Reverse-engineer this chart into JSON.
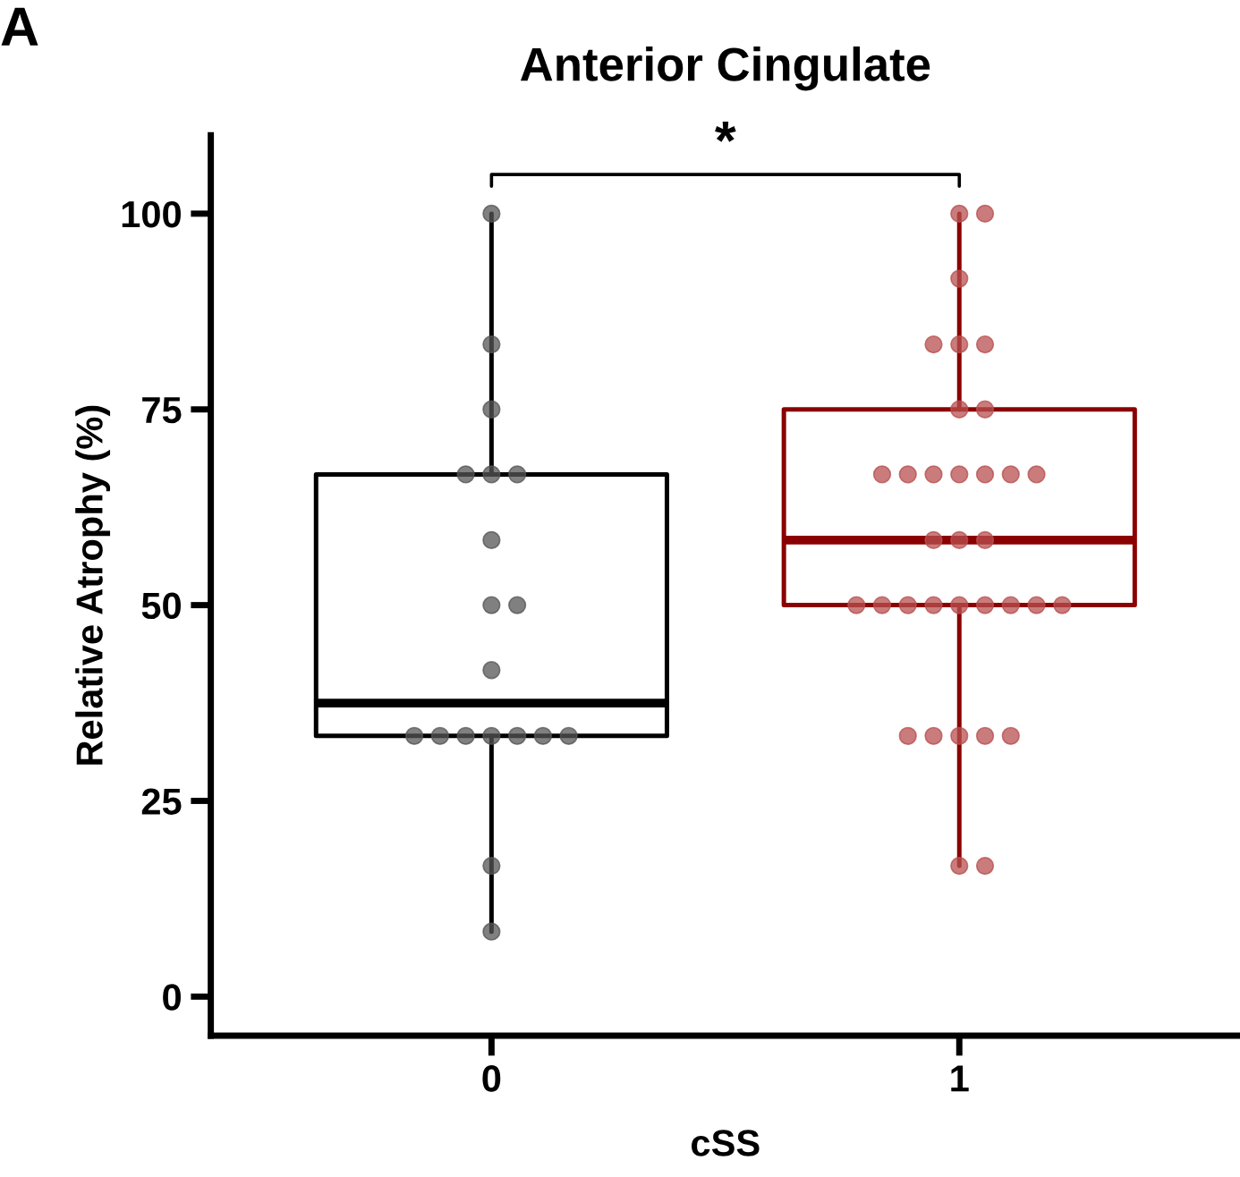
{
  "chart_data": {
    "type": "box",
    "title": "Anterior Cingulate",
    "xlabel": "cSS",
    "ylabel": "Relative Atrophy (%)",
    "categories": [
      "0",
      "1"
    ],
    "boxes": [
      {
        "low": 8.3,
        "q1": 33.3,
        "median": 37.5,
        "q3": 66.7,
        "high": 100
      },
      {
        "low": 16.7,
        "q1": 50,
        "median": 58.3,
        "q3": 75,
        "high": 100
      }
    ],
    "colors": [
      "#000000",
      "#8b0000"
    ],
    "series": [
      {
        "type": "scatter",
        "color": "#555555",
        "x": [
          "0",
          "0",
          "0",
          "0",
          "0",
          "0",
          "0",
          "0",
          "0",
          "0",
          "0",
          "0",
          "0",
          "0",
          "0",
          "0",
          "0",
          "0",
          "0"
        ],
        "values": [
          100,
          83.3,
          75,
          66.7,
          66.7,
          66.7,
          58.3,
          50,
          50,
          41.7,
          33.3,
          33.3,
          33.3,
          33.3,
          33.3,
          33.3,
          33.3,
          16.7,
          8.3
        ]
      },
      {
        "type": "scatter",
        "color": "#b85050",
        "x": [
          "1",
          "1",
          "1",
          "1",
          "1",
          "1",
          "1",
          "1",
          "1",
          "1",
          "1",
          "1",
          "1",
          "1",
          "1",
          "1",
          "1",
          "1",
          "1",
          "1",
          "1",
          "1",
          "1",
          "1",
          "1",
          "1",
          "1",
          "1",
          "1",
          "1",
          "1",
          "1",
          "1",
          "1"
        ],
        "values": [
          100,
          100,
          91.7,
          83.3,
          83.3,
          83.3,
          75,
          75,
          66.7,
          66.7,
          66.7,
          66.7,
          66.7,
          66.7,
          66.7,
          58.3,
          58.3,
          58.3,
          50,
          50,
          50,
          50,
          50,
          50,
          50,
          50,
          50,
          33.3,
          33.3,
          33.3,
          33.3,
          33.3,
          16.7,
          16.7
        ]
      }
    ],
    "ylim": [
      -5,
      110
    ],
    "yticks": [
      0,
      25,
      50,
      75,
      100
    ],
    "grid": false,
    "legend": false,
    "annotations": [
      "A",
      "*"
    ]
  }
}
